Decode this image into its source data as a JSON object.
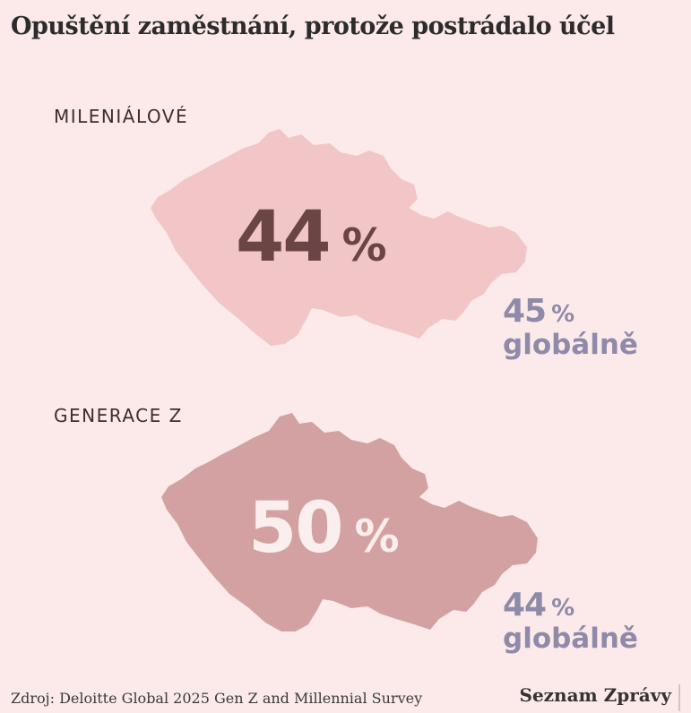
{
  "title": "Opuštění zaměstnání, protože postrádalo účel",
  "chart_data": {
    "type": "pictogram",
    "title": "Opuštění zaměstnání, protože postrádalo účel",
    "unit": "%",
    "groups": [
      {
        "label": "MILENIÁLOVÉ",
        "value": 44,
        "global_value": 44.9,
        "global_value_label": "45",
        "global_label": "globálně",
        "color": "#f2c6c6",
        "text_color": "#6b4545"
      },
      {
        "label": "GENERACE Z",
        "value": 50,
        "global_value": 44,
        "global_value_label": "44",
        "global_label": "globálně",
        "color": "#d3a1a1",
        "text_color": "#fbeeee"
      }
    ]
  },
  "colors": {
    "background": "#fceaea",
    "global_text": "#8e8aa8"
  },
  "source": "Zdroj: Deloitte Global 2025 Gen Z and Millennial Survey",
  "brand": "Seznam Zprávy"
}
